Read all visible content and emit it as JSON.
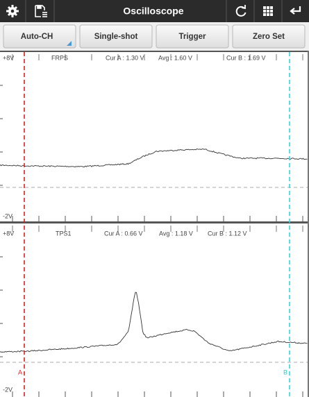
{
  "header": {
    "title": "Oscilloscope"
  },
  "buttons": [
    "Auto-CH",
    "Single-shot",
    "Trigger",
    "Zero Set"
  ],
  "panels": [
    {
      "top_label": "+8V",
      "bottom_label": "-2V",
      "channel": "FRPS",
      "cur_a": "Cur A : 1.30 V",
      "avg": "Avg : 1.60 V",
      "cur_b": "Cur B : 1.69 V"
    },
    {
      "top_label": "+8V",
      "bottom_label": "-2V",
      "channel": "TPS1",
      "cur_a": "Cur A : 0.66 V",
      "avg": "Avg : 1.18 V",
      "cur_b": "Cur B : 1.12 V"
    }
  ],
  "cursors": {
    "a": "A",
    "b": "B"
  }
}
